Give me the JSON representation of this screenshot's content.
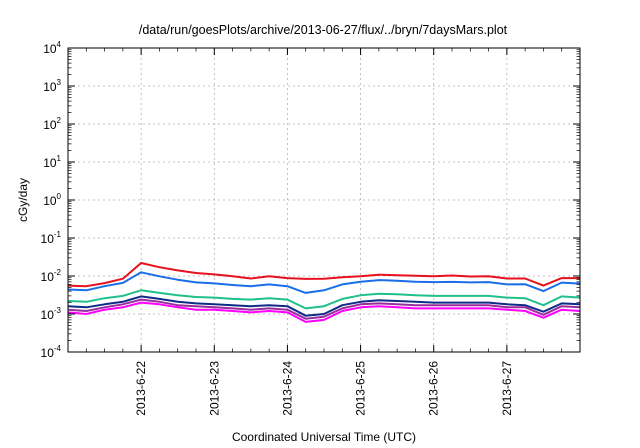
{
  "chart_data": {
    "type": "line",
    "title": "/data/run/goesPlots/archive/2013-06-27/flux/../bryn/7daysMars.plot",
    "xlabel": "Coordinated Universal Time (UTC)",
    "ylabel": "cGy/day",
    "y_scale": "log",
    "ylim": [
      0.0001,
      10000
    ],
    "xlim": [
      "2013-06-21T00:00",
      "2013-06-28T00:00"
    ],
    "x_ticks": [
      "2013-6-22",
      "2013-6-23",
      "2013-6-24",
      "2013-6-25",
      "2013-6-26",
      "2013-6-27"
    ],
    "y_ticks": [
      {
        "base": "10",
        "exp": "-4"
      },
      {
        "base": "10",
        "exp": "-3"
      },
      {
        "base": "10",
        "exp": "-2"
      },
      {
        "base": "10",
        "exp": "-1"
      },
      {
        "base": "10",
        "exp": "0"
      },
      {
        "base": "10",
        "exp": "1"
      },
      {
        "base": "10",
        "exp": "2"
      },
      {
        "base": "10",
        "exp": "3"
      },
      {
        "base": "10",
        "exp": "4"
      }
    ],
    "grid": true,
    "legend": "none",
    "x_days": [
      0,
      0.25,
      0.5,
      0.75,
      1,
      1.25,
      1.5,
      1.75,
      2,
      2.25,
      2.5,
      2.75,
      3,
      3.25,
      3.5,
      3.75,
      4,
      4.25,
      4.5,
      4.75,
      5,
      5.25,
      5.5,
      5.75,
      6,
      6.25,
      6.5,
      6.75,
      7
    ],
    "series": [
      {
        "color": "#e8101c",
        "values": [
          0.0056,
          0.0054,
          0.0065,
          0.0085,
          0.022,
          0.017,
          0.014,
          0.012,
          0.011,
          0.0098,
          0.0086,
          0.0098,
          0.0088,
          0.0084,
          0.0085,
          0.0093,
          0.0098,
          0.0108,
          0.0105,
          0.0102,
          0.0099,
          0.0103,
          0.0097,
          0.0099,
          0.0086,
          0.0086,
          0.0056,
          0.0088,
          0.0088
        ]
      },
      {
        "color": "#1a6ee8",
        "values": [
          0.0044,
          0.0042,
          0.0054,
          0.0066,
          0.0125,
          0.0098,
          0.008,
          0.0068,
          0.0064,
          0.0058,
          0.0054,
          0.006,
          0.0054,
          0.0036,
          0.0042,
          0.006,
          0.0071,
          0.0078,
          0.0075,
          0.0071,
          0.0069,
          0.007,
          0.0068,
          0.0069,
          0.006,
          0.0061,
          0.004,
          0.0067,
          0.0063
        ]
      },
      {
        "color": "#20c08a",
        "values": [
          0.0022,
          0.0021,
          0.0026,
          0.003,
          0.0042,
          0.0036,
          0.0031,
          0.0028,
          0.0027,
          0.0025,
          0.0024,
          0.0026,
          0.0024,
          0.0014,
          0.0016,
          0.0025,
          0.0031,
          0.0034,
          0.0033,
          0.0031,
          0.003,
          0.003,
          0.003,
          0.003,
          0.0027,
          0.0026,
          0.0017,
          0.0029,
          0.0027
        ]
      },
      {
        "color": "#102a88",
        "values": [
          0.0016,
          0.0015,
          0.0018,
          0.0021,
          0.0029,
          0.0025,
          0.0021,
          0.0019,
          0.0018,
          0.0017,
          0.0016,
          0.0017,
          0.0016,
          0.0009,
          0.001,
          0.0017,
          0.0021,
          0.0023,
          0.0022,
          0.0021,
          0.002,
          0.002,
          0.002,
          0.002,
          0.0018,
          0.0017,
          0.00115,
          0.0019,
          0.0018
        ]
      },
      {
        "color": "#9a2f9c",
        "values": [
          0.0013,
          0.0012,
          0.0015,
          0.0018,
          0.0024,
          0.0021,
          0.0017,
          0.0016,
          0.0015,
          0.0014,
          0.0013,
          0.0014,
          0.0013,
          0.00075,
          0.00085,
          0.0014,
          0.0018,
          0.0019,
          0.0018,
          0.0017,
          0.0017,
          0.0017,
          0.0017,
          0.0017,
          0.0015,
          0.0015,
          0.00095,
          0.0016,
          0.0015
        ]
      },
      {
        "color": "#ff00ff",
        "values": [
          0.0011,
          0.001,
          0.0013,
          0.0015,
          0.002,
          0.0018,
          0.0015,
          0.0013,
          0.0013,
          0.0012,
          0.0011,
          0.0012,
          0.0011,
          0.00062,
          0.0007,
          0.0012,
          0.0015,
          0.0016,
          0.0015,
          0.0014,
          0.0014,
          0.0014,
          0.0014,
          0.0014,
          0.0013,
          0.0012,
          0.0008,
          0.0013,
          0.0012
        ]
      }
    ]
  }
}
